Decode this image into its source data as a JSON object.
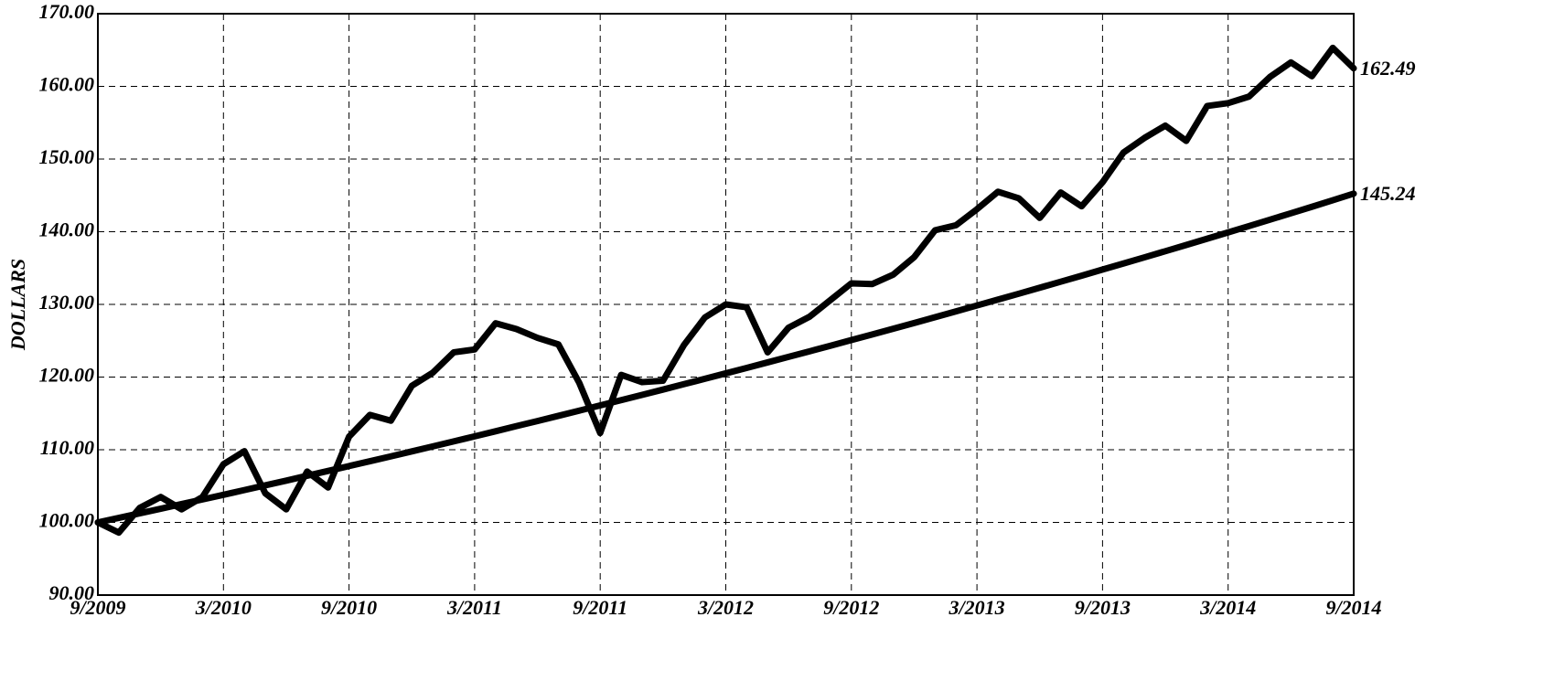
{
  "chart_data": {
    "type": "line",
    "y_label": "DOLLARS",
    "categories": [
      "9/2009",
      null,
      null,
      null,
      null,
      null,
      "3/2010",
      null,
      null,
      null,
      null,
      null,
      "9/2010",
      null,
      null,
      null,
      null,
      null,
      "3/2011",
      null,
      null,
      null,
      null,
      null,
      "9/2011",
      null,
      null,
      null,
      null,
      null,
      "3/2012",
      null,
      null,
      null,
      null,
      null,
      "9/2012",
      null,
      null,
      null,
      null,
      null,
      "3/2013",
      null,
      null,
      null,
      null,
      null,
      "9/2013",
      null,
      null,
      null,
      null,
      null,
      "3/2014",
      null,
      null,
      null,
      null,
      null,
      "9/2014"
    ],
    "series": [
      {
        "color": "#000000",
        "values": [
          100.0,
          98.6,
          102.0,
          103.5,
          101.8,
          103.5,
          108.0,
          109.8,
          104.0,
          101.8,
          107.0,
          104.8,
          111.8,
          114.8,
          114.0,
          118.8,
          120.6,
          123.4,
          123.8,
          127.4,
          126.6,
          125.4,
          124.5,
          119.2,
          112.3,
          120.3,
          119.3,
          119.5,
          124.4,
          128.2,
          130.0,
          129.6,
          123.4,
          126.8,
          128.3,
          130.6,
          132.9,
          132.8,
          134.1,
          136.5,
          140.2,
          140.9,
          143.1,
          145.5,
          144.6,
          141.9,
          145.4,
          143.5,
          146.8,
          150.9,
          152.9,
          154.6,
          152.5,
          157.3,
          157.7,
          158.6,
          161.3,
          163.3,
          161.4,
          165.3,
          162.49
        ],
        "value_labels": {
          "60": "162.49"
        }
      },
      {
        "color": "#000000",
        "values": [
          100.0,
          100.62,
          101.25,
          101.88,
          102.52,
          103.16,
          103.8,
          104.45,
          105.1,
          105.75,
          106.42,
          107.08,
          107.75,
          108.42,
          109.09,
          109.77,
          110.46,
          111.15,
          111.84,
          112.54,
          113.25,
          113.95,
          114.66,
          115.38,
          116.1,
          116.82,
          117.55,
          118.28,
          119.02,
          119.76,
          120.51,
          121.26,
          122.02,
          122.78,
          123.54,
          124.31,
          125.09,
          125.87,
          126.65,
          127.44,
          128.24,
          129.04,
          129.85,
          130.66,
          131.47,
          132.29,
          133.12,
          133.95,
          134.79,
          135.63,
          136.47,
          137.32,
          138.18,
          139.04,
          139.91,
          140.78,
          141.66,
          142.54,
          143.43,
          144.33,
          145.24
        ],
        "value_labels": {
          "60": "145.24"
        }
      }
    ],
    "ylim": [
      90,
      170
    ],
    "yticks": [
      {
        "value": 90,
        "label": "90.00"
      },
      {
        "value": 100,
        "label": "100.00"
      },
      {
        "value": 110,
        "label": "110.00"
      },
      {
        "value": 120,
        "label": "120.00"
      },
      {
        "value": 130,
        "label": "130.00"
      },
      {
        "value": 140,
        "label": "140.00"
      },
      {
        "value": 150,
        "label": "150.00"
      },
      {
        "value": 160,
        "label": "160.00"
      },
      {
        "value": 170,
        "label": "170.00"
      }
    ],
    "grid": true
  }
}
